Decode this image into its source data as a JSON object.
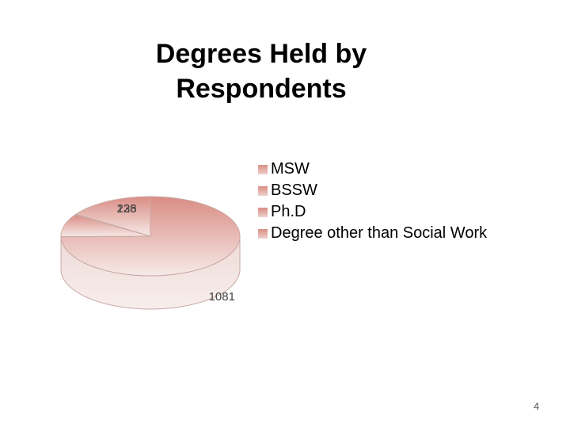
{
  "chart_data": {
    "type": "pie",
    "title": [
      "Degrees Held by",
      "Respondents"
    ],
    "categories": [
      "MSW",
      "BSSW",
      "Ph.D",
      "Degree other than Social Work"
    ],
    "values": [
      1081,
      133,
      4,
      226
    ],
    "data_labels": [
      "1081",
      "133",
      "",
      "226"
    ],
    "legend_position": "right",
    "style": "3d",
    "colors": {
      "fill_top": "#d98d84",
      "fill_bottom": "#f6e9e7",
      "edge": "#c9a9a5"
    }
  },
  "page_number": "4"
}
